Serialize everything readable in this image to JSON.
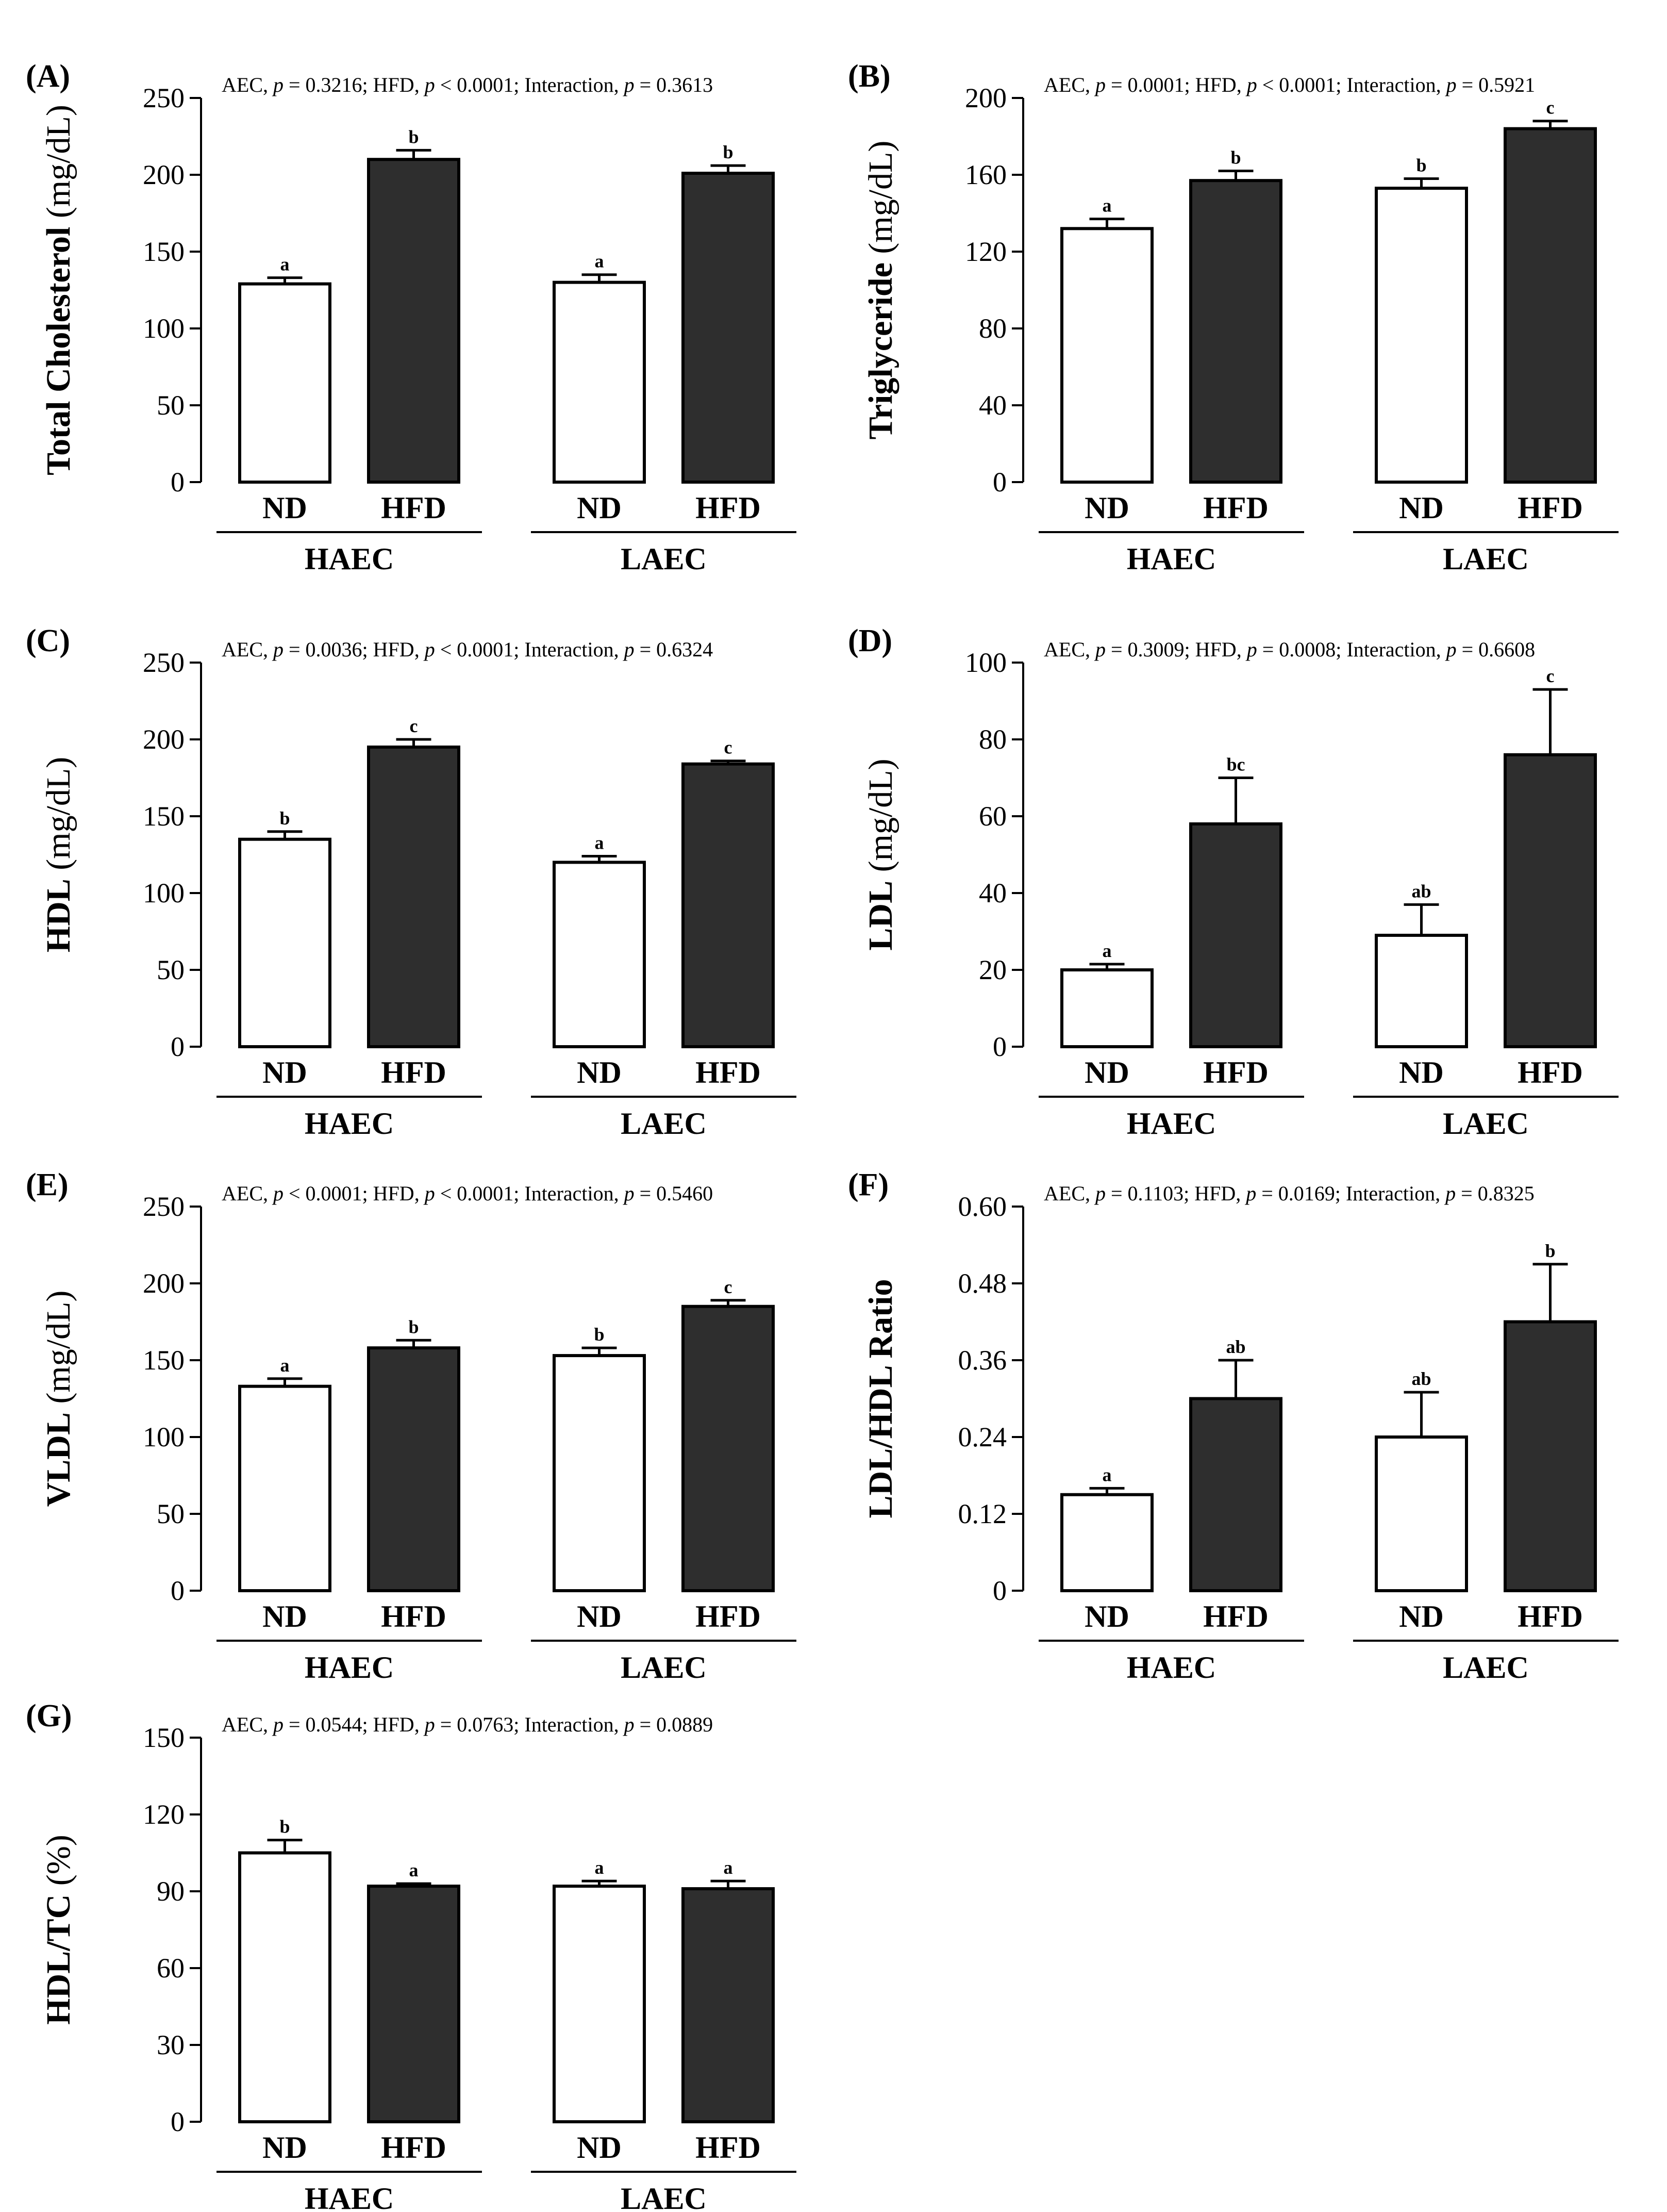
{
  "figure": {
    "groups": [
      "HAEC",
      "LAEC"
    ],
    "treatments": [
      "ND",
      "HFD"
    ],
    "colors": {
      "ND": "#ffffff",
      "HFD": "#2e2e2e",
      "stroke": "#000000"
    }
  },
  "chart_data": [
    {
      "type": "bar",
      "panel": "(A)",
      "stats_text": "AEC, p = 0.3216; HFD, p < 0.0001; Interaction, p = 0.3613",
      "ylabel": "Total Cholesterol (mg/dL)",
      "ylabel_bold_part": "Total Cholesterol",
      "ylabel_unit": "(mg/dL)",
      "ylim": [
        0,
        250
      ],
      "yticks": [
        "0",
        "50",
        "100",
        "150",
        "200",
        "250"
      ],
      "categories": [
        "ND",
        "HFD",
        "ND",
        "HFD"
      ],
      "groups": [
        "HAEC",
        "LAEC"
      ],
      "values": [
        129,
        210,
        130,
        201
      ],
      "errors": [
        4,
        6,
        5,
        5
      ],
      "letters": [
        "a",
        "b",
        "a",
        "b"
      ]
    },
    {
      "type": "bar",
      "panel": "(B)",
      "stats_text": "AEC, p = 0.0001; HFD, p < 0.0001; Interaction, p = 0.5921",
      "ylabel": "Triglyceride (mg/dL)",
      "ylabel_bold_part": "Triglyceride",
      "ylabel_unit": "(mg/dL)",
      "ylim": [
        0,
        200
      ],
      "yticks": [
        "0",
        "40",
        "80",
        "120",
        "160",
        "200"
      ],
      "categories": [
        "ND",
        "HFD",
        "ND",
        "HFD"
      ],
      "groups": [
        "HAEC",
        "LAEC"
      ],
      "values": [
        132,
        157,
        153,
        184
      ],
      "errors": [
        5,
        5,
        5,
        4
      ],
      "letters": [
        "a",
        "b",
        "b",
        "c"
      ]
    },
    {
      "type": "bar",
      "panel": "(C)",
      "stats_text": "AEC, p = 0.0036; HFD, p < 0.0001; Interaction, p = 0.6324",
      "ylabel": "HDL (mg/dL)",
      "ylabel_bold_part": "HDL",
      "ylabel_unit": "(mg/dL)",
      "ylim": [
        0,
        250
      ],
      "yticks": [
        "0",
        "50",
        "100",
        "150",
        "200",
        "250"
      ],
      "categories": [
        "ND",
        "HFD",
        "ND",
        "HFD"
      ],
      "groups": [
        "HAEC",
        "LAEC"
      ],
      "values": [
        135,
        195,
        120,
        184
      ],
      "errors": [
        5,
        5,
        4,
        2
      ],
      "letters": [
        "b",
        "c",
        "a",
        "c"
      ]
    },
    {
      "type": "bar",
      "panel": "(D)",
      "stats_text": "AEC, p = 0.3009; HFD, p = 0.0008; Interaction, p = 0.6608",
      "ylabel": "LDL (mg/dL)",
      "ylabel_bold_part": "LDL",
      "ylabel_unit": "(mg/dL)",
      "ylim": [
        0,
        100
      ],
      "yticks": [
        "0",
        "20",
        "40",
        "60",
        "80",
        "100"
      ],
      "categories": [
        "ND",
        "HFD",
        "ND",
        "HFD"
      ],
      "groups": [
        "HAEC",
        "LAEC"
      ],
      "values": [
        20,
        58,
        29,
        76
      ],
      "errors": [
        1.5,
        12,
        8,
        17
      ],
      "letters": [
        "a",
        "bc",
        "ab",
        "c"
      ]
    },
    {
      "type": "bar",
      "panel": "(E)",
      "stats_text": "AEC, p < 0.0001; HFD, p < 0.0001; Interaction, p = 0.5460",
      "ylabel": "VLDL (mg/dL)",
      "ylabel_bold_part": "VLDL",
      "ylabel_unit": "(mg/dL)",
      "ylim": [
        0,
        250
      ],
      "yticks": [
        "0",
        "50",
        "100",
        "150",
        "200",
        "250"
      ],
      "categories": [
        "ND",
        "HFD",
        "ND",
        "HFD"
      ],
      "groups": [
        "HAEC",
        "LAEC"
      ],
      "values": [
        133,
        158,
        153,
        185
      ],
      "errors": [
        5,
        5,
        5,
        4
      ],
      "letters": [
        "a",
        "b",
        "b",
        "c"
      ]
    },
    {
      "type": "bar",
      "panel": "(F)",
      "stats_text": "AEC, p = 0.1103; HFD, p = 0.0169; Interaction, p = 0.8325",
      "ylabel": "LDL/HDL Ratio",
      "ylabel_bold_part": "LDL/HDL Ratio",
      "ylabel_unit": "",
      "ylim": [
        0,
        0.6
      ],
      "yticks": [
        "0",
        "0.12",
        "0.24",
        "0.36",
        "0.48",
        "0.60"
      ],
      "categories": [
        "ND",
        "HFD",
        "ND",
        "HFD"
      ],
      "groups": [
        "HAEC",
        "LAEC"
      ],
      "values": [
        0.15,
        0.3,
        0.24,
        0.42
      ],
      "errors": [
        0.01,
        0.06,
        0.07,
        0.09
      ],
      "letters": [
        "a",
        "ab",
        "ab",
        "b"
      ]
    },
    {
      "type": "bar",
      "panel": "(G)",
      "stats_text": "AEC, p = 0.0544; HFD, p = 0.0763; Interaction, p = 0.0889",
      "ylabel": "HDL/TC (%)",
      "ylabel_bold_part": "HDL/TC",
      "ylabel_unit": "(%)",
      "ylim": [
        0,
        150
      ],
      "yticks": [
        "0",
        "30",
        "60",
        "90",
        "120",
        "150"
      ],
      "categories": [
        "ND",
        "HFD",
        "ND",
        "HFD"
      ],
      "groups": [
        "HAEC",
        "LAEC"
      ],
      "values": [
        105,
        92,
        92,
        91
      ],
      "errors": [
        5,
        1,
        2,
        3
      ],
      "letters": [
        "b",
        "a",
        "a",
        "a"
      ]
    }
  ]
}
